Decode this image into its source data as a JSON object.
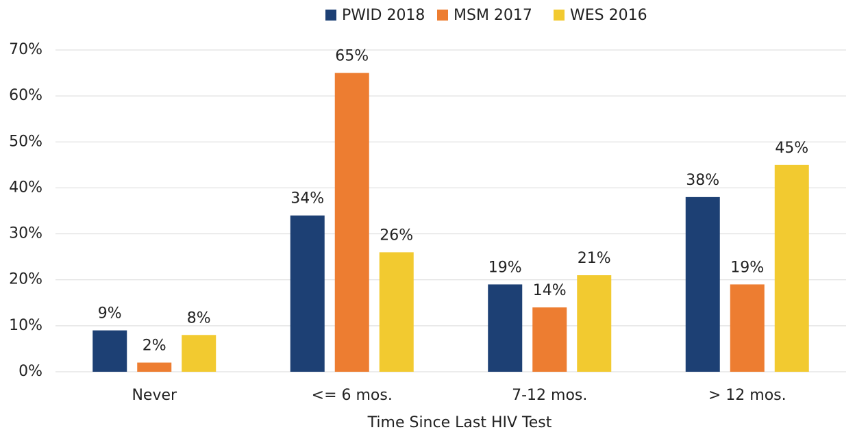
{
  "chart_data": {
    "type": "bar",
    "x_label": "Time Since Last HIV Test",
    "categories": [
      "Never",
      "<= 6 mos.",
      "7-12 mos.",
      "> 12 mos."
    ],
    "series": [
      {
        "name": "PWID 2018",
        "color": "#1d4074",
        "values": [
          9,
          34,
          19,
          38
        ],
        "value_labels": [
          "9%",
          "34%",
          "19%",
          "38%"
        ]
      },
      {
        "name": "MSM 2017",
        "color": "#ed7d31",
        "values": [
          2,
          65,
          14,
          19
        ],
        "value_labels": [
          "2%",
          "65%",
          "14%",
          "19%"
        ]
      },
      {
        "name": "WES 2016",
        "color": "#f2ca30",
        "values": [
          8,
          26,
          21,
          45
        ],
        "value_labels": [
          "8%",
          "26%",
          "21%",
          "45%"
        ]
      }
    ],
    "ylim": [
      0,
      70
    ],
    "yticks": [
      {
        "value": 0,
        "label": "0%"
      },
      {
        "value": 10,
        "label": "10%"
      },
      {
        "value": 20,
        "label": "20%"
      },
      {
        "value": 30,
        "label": "30%"
      },
      {
        "value": 40,
        "label": "40%"
      },
      {
        "value": 50,
        "label": "50%"
      },
      {
        "value": 60,
        "label": "60%"
      },
      {
        "value": 70,
        "label": "70%"
      }
    ],
    "grid": true,
    "legend": "top"
  }
}
